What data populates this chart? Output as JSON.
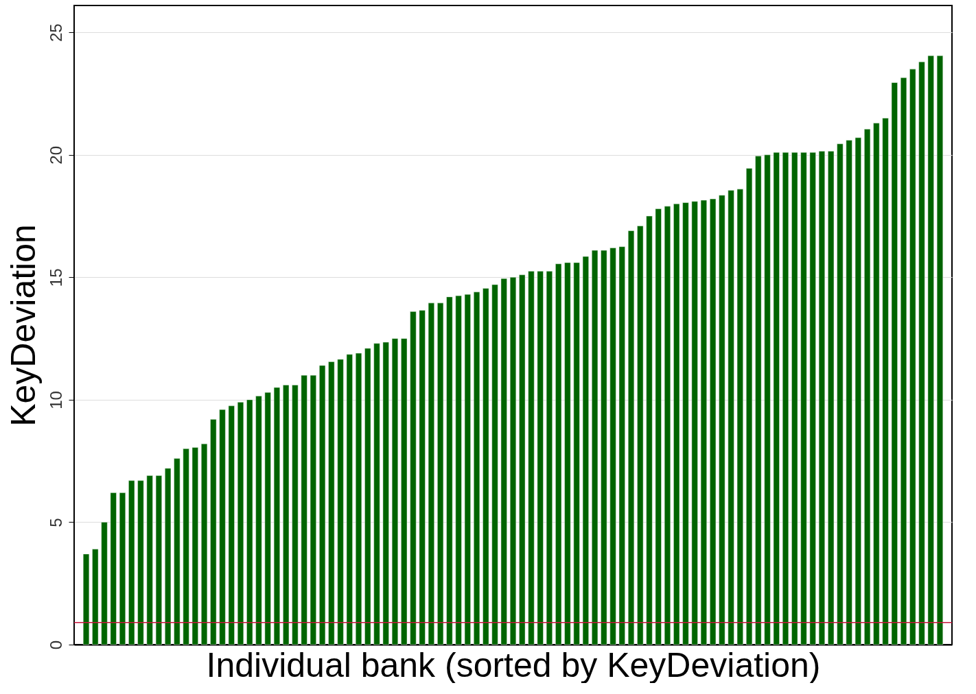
{
  "chart_data": {
    "type": "bar",
    "xlabel": "Individual bank (sorted by KeyDeviation)",
    "ylabel": "KeyDeviation",
    "categories": [
      null,
      null,
      null,
      null,
      null,
      null,
      null,
      null,
      null,
      null,
      null,
      null,
      null,
      null,
      null,
      null,
      null,
      null,
      null,
      null,
      null,
      null,
      null,
      null,
      null,
      null,
      null,
      null,
      null,
      null,
      null,
      null,
      null,
      null,
      null,
      null,
      null,
      null,
      null,
      null,
      null,
      null,
      null,
      null,
      null,
      null,
      null,
      null,
      null,
      null,
      null,
      null,
      null,
      null,
      null,
      null,
      null,
      null,
      null,
      null,
      null,
      null,
      null,
      null,
      null,
      null,
      null,
      null,
      null,
      null,
      null,
      null,
      null,
      null,
      null,
      null,
      null,
      null,
      null,
      null,
      null,
      null,
      null,
      null,
      null,
      null,
      null,
      null,
      null,
      null,
      null,
      null,
      null,
      null,
      null
    ],
    "values": [
      3.7,
      3.9,
      5.0,
      6.2,
      6.2,
      6.7,
      6.7,
      6.9,
      6.9,
      7.2,
      7.6,
      8.0,
      8.05,
      8.2,
      9.2,
      9.6,
      9.75,
      9.9,
      10.0,
      10.15,
      10.3,
      10.5,
      10.6,
      10.6,
      11.0,
      11.0,
      11.4,
      11.55,
      11.65,
      11.85,
      11.9,
      12.1,
      12.3,
      12.35,
      12.5,
      12.5,
      13.6,
      13.65,
      13.95,
      13.95,
      14.2,
      14.25,
      14.3,
      14.4,
      14.55,
      14.7,
      14.95,
      15.0,
      15.1,
      15.25,
      15.25,
      15.25,
      15.55,
      15.6,
      15.6,
      15.85,
      16.1,
      16.1,
      16.2,
      16.25,
      16.9,
      17.1,
      17.5,
      17.8,
      17.9,
      18.0,
      18.05,
      18.1,
      18.15,
      18.2,
      18.35,
      18.55,
      18.6,
      19.45,
      19.95,
      20.0,
      20.1,
      20.1,
      20.1,
      20.1,
      20.1,
      20.15,
      20.15,
      20.45,
      20.6,
      20.7,
      21.05,
      21.3,
      21.5,
      22.95,
      23.15,
      23.5,
      23.8,
      24.05,
      24.05
    ],
    "color": "#006400",
    "ylim": [
      0,
      26.1
    ],
    "yticks": [
      0,
      5,
      10,
      15,
      20,
      25
    ],
    "grid": "y",
    "tick_labels": "y",
    "ref_lines": [
      {
        "axis": "y",
        "value": 0.9,
        "color": "#c8163c"
      }
    ]
  }
}
